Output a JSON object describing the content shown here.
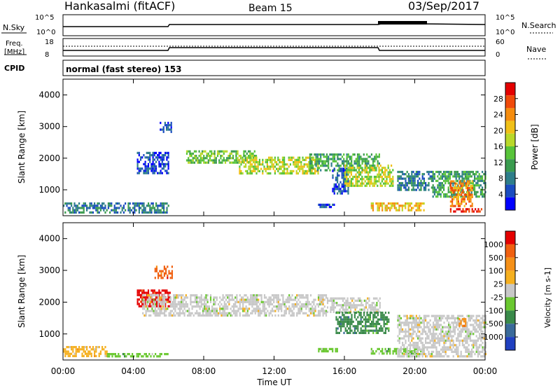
{
  "header": {
    "station": "Hankasalmi (fitACF)",
    "beam": "Beam 15",
    "date": "03/Sep/2017"
  },
  "strip_panels": {
    "nsky_label": "N.Sky",
    "nsearch_label": "N.Search",
    "nsky_ticks": [
      "10^5",
      "10^0"
    ],
    "nsearch_ticks": [
      "10^5",
      "10^0"
    ],
    "freq_label_line1": "Freq.",
    "freq_label_line2": "[MHz]",
    "freq_ticks": [
      "18",
      "8"
    ],
    "nave_label": "Nave",
    "nave_ticks": [
      "60",
      "0"
    ],
    "cpid_label": "CPID",
    "cpid_text": "normal (fast stereo) 153"
  },
  "chart_data": [
    {
      "type": "heatmap",
      "name": "power-panel",
      "ylabel": "Slant Range [km]",
      "xlabel": "",
      "x_tick_labels": [
        "00:00",
        "04:00",
        "08:00",
        "12:00",
        "16:00",
        "20:00",
        "00:00"
      ],
      "y_ticks": [
        1000,
        2000,
        3000,
        4000
      ],
      "ylim": [
        180,
        4500
      ],
      "xlim_hours": [
        0,
        24
      ],
      "colorbar": {
        "label": "Power [dB]",
        "ticks": [
          "28",
          "24",
          "20",
          "16",
          "12",
          "8",
          "4"
        ],
        "colors": [
          "#0000ff",
          "#1a4cc0",
          "#2e7e8a",
          "#3a9b4e",
          "#58c43a",
          "#b9d82a",
          "#f0c018",
          "#f58c0e",
          "#f04a0a",
          "#e40000"
        ]
      },
      "regions": [
        {
          "t0": 0.0,
          "t1": 6.0,
          "r0": 300,
          "r1": 600,
          "level": 2
        },
        {
          "t0": 4.2,
          "t1": 6.0,
          "r0": 1550,
          "r1": 2200,
          "level": 1
        },
        {
          "t0": 5.5,
          "t1": 6.2,
          "r0": 2800,
          "r1": 3150,
          "level": 1
        },
        {
          "t0": 7.0,
          "t1": 11.0,
          "r0": 1850,
          "r1": 2250,
          "level": 4
        },
        {
          "t0": 10.0,
          "t1": 14.5,
          "r0": 1550,
          "r1": 2050,
          "level": 5
        },
        {
          "t0": 14.0,
          "t1": 18.0,
          "r0": 1650,
          "r1": 2150,
          "level": 3
        },
        {
          "t0": 14.5,
          "t1": 15.5,
          "r0": 480,
          "r1": 560,
          "level": 1
        },
        {
          "t0": 15.3,
          "t1": 16.2,
          "r0": 900,
          "r1": 1700,
          "level": 1
        },
        {
          "t0": 16.0,
          "t1": 18.8,
          "r0": 1100,
          "r1": 1800,
          "level": 5
        },
        {
          "t0": 17.5,
          "t1": 20.5,
          "r0": 380,
          "r1": 600,
          "level": 6
        },
        {
          "t0": 19.0,
          "t1": 21.0,
          "r0": 1000,
          "r1": 1600,
          "level": 2
        },
        {
          "t0": 21.0,
          "t1": 24.0,
          "r0": 800,
          "r1": 1600,
          "level": 3
        },
        {
          "t0": 22.0,
          "t1": 23.3,
          "r0": 500,
          "r1": 1300,
          "level": 7
        },
        {
          "t0": 22.0,
          "t1": 23.8,
          "r0": 280,
          "r1": 420,
          "level": 9
        }
      ]
    },
    {
      "type": "heatmap",
      "name": "velocity-panel",
      "ylabel": "Slant Range [km]",
      "xlabel": "Time UT",
      "x_tick_labels": [
        "00:00",
        "04:00",
        "08:00",
        "12:00",
        "16:00",
        "20:00",
        "00:00"
      ],
      "y_ticks": [
        1000,
        2000,
        3000,
        4000
      ],
      "ylim": [
        180,
        4500
      ],
      "xlim_hours": [
        0,
        24
      ],
      "colorbar": {
        "label": "Velocity [m s-1]",
        "ticks": [
          "1000",
          "500",
          "100",
          "25",
          "-25",
          "-100",
          "-500",
          "-1000"
        ],
        "colors": [
          "#2040c0",
          "#3a6a9a",
          "#3a8a4a",
          "#6ac830",
          "#c8c8c8",
          "#f5b020",
          "#f59018",
          "#f06010",
          "#e40000"
        ]
      },
      "regions": [
        {
          "t0": 0.0,
          "t1": 2.5,
          "r0": 320,
          "r1": 620,
          "color_index": 5
        },
        {
          "t0": 2.5,
          "t1": 6.0,
          "r0": 300,
          "r1": 400,
          "color_index": 3
        },
        {
          "t0": 4.2,
          "t1": 6.1,
          "r0": 1850,
          "r1": 2400,
          "color_index": 8
        },
        {
          "t0": 5.2,
          "t1": 6.2,
          "r0": 2750,
          "r1": 3150,
          "color_index": 7
        },
        {
          "t0": 4.5,
          "t1": 15.0,
          "r0": 1600,
          "r1": 2250,
          "color_index": 4
        },
        {
          "t0": 15.0,
          "t1": 18.0,
          "r0": 1700,
          "r1": 2150,
          "color_index": 4
        },
        {
          "t0": 14.5,
          "t1": 15.6,
          "r0": 480,
          "r1": 560,
          "color_index": 3
        },
        {
          "t0": 15.5,
          "t1": 18.5,
          "r0": 1000,
          "r1": 1700,
          "color_index": 2
        },
        {
          "t0": 17.5,
          "t1": 20.5,
          "r0": 380,
          "r1": 560,
          "color_index": 3
        },
        {
          "t0": 19.0,
          "t1": 24.0,
          "r0": 300,
          "r1": 1600,
          "color_index": 4
        },
        {
          "t0": 22.5,
          "t1": 22.9,
          "r0": 1250,
          "r1": 1500,
          "color_index": 6
        }
      ]
    }
  ]
}
